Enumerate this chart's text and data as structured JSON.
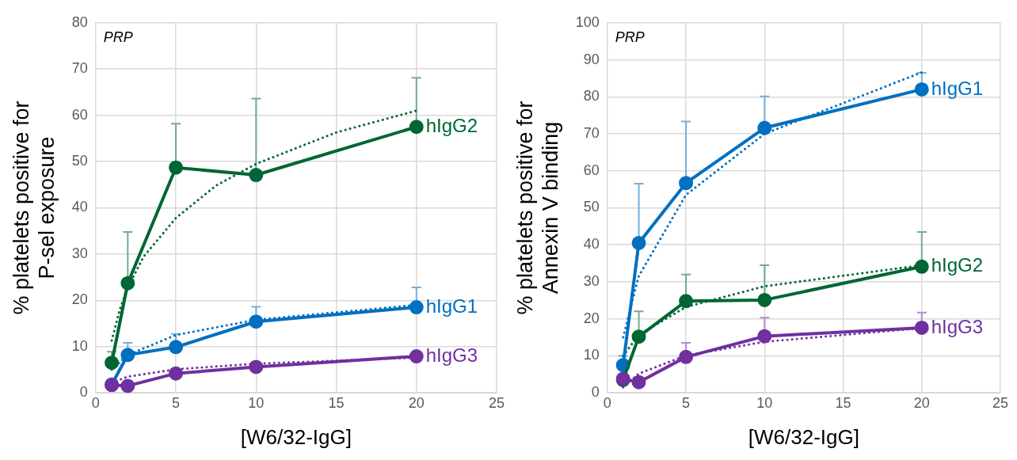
{
  "chart_data": [
    {
      "type": "line",
      "xlabel": "[W6/32-IgG]",
      "ylabel": "% platelets positive for\nP-sel exposure",
      "annotations": [
        "PRP"
      ],
      "xlim": [
        0,
        25
      ],
      "xticks": [
        0,
        5,
        10,
        15,
        20,
        25
      ],
      "ylim": [
        0,
        80
      ],
      "yticks": [
        0,
        10,
        20,
        30,
        40,
        50,
        60,
        70,
        80
      ],
      "grid": true,
      "legend": false,
      "marker": "circle",
      "line_style": "solid",
      "series": [
        {
          "name": "hIgG2",
          "color": "#006633",
          "x": [
            1,
            2,
            5,
            10,
            20
          ],
          "values": [
            6.5,
            23.7,
            48.7,
            47.1,
            57.5
          ],
          "errors": [
            [
              6.5,
              8.9
            ],
            [
              23.7,
              34.8
            ],
            [
              48.7,
              58.2
            ],
            [
              47.1,
              63.6
            ],
            [
              57.5,
              68.1
            ]
          ]
        },
        {
          "name": "hIgG1",
          "color": "#0070c0",
          "x": [
            1,
            2,
            5,
            10,
            20
          ],
          "values": [
            1.8,
            8.2,
            9.9,
            15.4,
            18.5
          ],
          "errors": [
            null,
            [
              8.2,
              10.8
            ],
            [
              9.9,
              12.7
            ],
            [
              15.4,
              18.6
            ],
            [
              18.5,
              22.8
            ]
          ]
        },
        {
          "name": "hIgG3",
          "color": "#7030a0",
          "x": [
            1,
            2,
            5,
            10,
            20
          ],
          "values": [
            1.7,
            1.5,
            4.2,
            5.6,
            7.9
          ]
        },
        {
          "type": "line",
          "marker": "none",
          "line_style": "dotted",
          "color": "#006633",
          "x": [
            1,
            1.5,
            2,
            3,
            5,
            7.5,
            10,
            15,
            20
          ],
          "values": [
            11.3,
            18.0,
            22.8,
            29.5,
            37.8,
            44.8,
            49.5,
            56.3,
            61.0
          ]
        },
        {
          "type": "line",
          "marker": "none",
          "line_style": "dotted",
          "color": "#0070c0",
          "x": [
            1,
            2,
            5,
            10,
            20
          ],
          "values": [
            5.0,
            8.2,
            12.5,
            15.8,
            19.0
          ]
        },
        {
          "type": "line",
          "marker": "none",
          "line_style": "dotted",
          "color": "#7030a0",
          "x": [
            1,
            2,
            5,
            10,
            20
          ],
          "values": [
            2.2,
            3.5,
            5.1,
            6.3,
            7.6
          ]
        }
      ]
    },
    {
      "type": "line",
      "xlabel": "[W6/32-IgG]",
      "ylabel": "% platelets positive for\nAnnexin V binding",
      "annotations": [
        "PRP"
      ],
      "xlim": [
        0,
        25
      ],
      "xticks": [
        0,
        5,
        10,
        15,
        20,
        25
      ],
      "ylim": [
        0,
        100
      ],
      "yticks": [
        0,
        10,
        20,
        30,
        40,
        50,
        60,
        70,
        80,
        90,
        100
      ],
      "grid": true,
      "legend": false,
      "marker": "circle",
      "line_style": "solid",
      "series": [
        {
          "name": "hIgG1",
          "color": "#0070c0",
          "x": [
            1,
            2,
            5,
            10,
            20
          ],
          "values": [
            7.5,
            40.5,
            56.7,
            71.6,
            82
          ],
          "errors": [
            [
              7.5,
              10
            ],
            [
              40.5,
              56.5
            ],
            [
              56.7,
              73.3
            ],
            [
              71.6,
              80.1
            ],
            [
              82,
              86.5
            ]
          ]
        },
        {
          "name": "hIgG2",
          "color": "#006633",
          "x": [
            1,
            2,
            5,
            10,
            20
          ],
          "values": [
            3.5,
            15.2,
            24.8,
            25.1,
            34.1
          ],
          "errors": [
            null,
            [
              15.2,
              22
            ],
            [
              24.8,
              32
            ],
            [
              25.1,
              34.5
            ],
            [
              34.1,
              43.5
            ]
          ]
        },
        {
          "name": "hIgG3",
          "color": "#7030a0",
          "x": [
            1,
            2,
            5,
            10,
            20
          ],
          "values": [
            3.8,
            2.9,
            9.7,
            15.3,
            17.6
          ],
          "errors": [
            null,
            null,
            [
              9.7,
              13.5
            ],
            [
              15.3,
              20.3
            ],
            [
              17.6,
              21.7
            ]
          ]
        },
        {
          "type": "line",
          "marker": "none",
          "line_style": "dotted",
          "color": "#0070c0",
          "x": [
            1,
            2,
            5,
            10,
            20
          ],
          "values": [
            15,
            31.6,
            53.5,
            70,
            86.6
          ]
        },
        {
          "type": "line",
          "marker": "none",
          "line_style": "dotted",
          "color": "#006633",
          "x": [
            1,
            2,
            5,
            10,
            20
          ],
          "values": [
            10,
            15.7,
            23.2,
            28.8,
            34.5
          ]
        },
        {
          "type": "line",
          "marker": "none",
          "line_style": "dotted",
          "color": "#7030a0",
          "x": [
            1,
            2,
            5,
            10,
            20
          ],
          "values": [
            1.5,
            5.2,
            10.1,
            13.8,
            17.5
          ]
        }
      ]
    }
  ]
}
